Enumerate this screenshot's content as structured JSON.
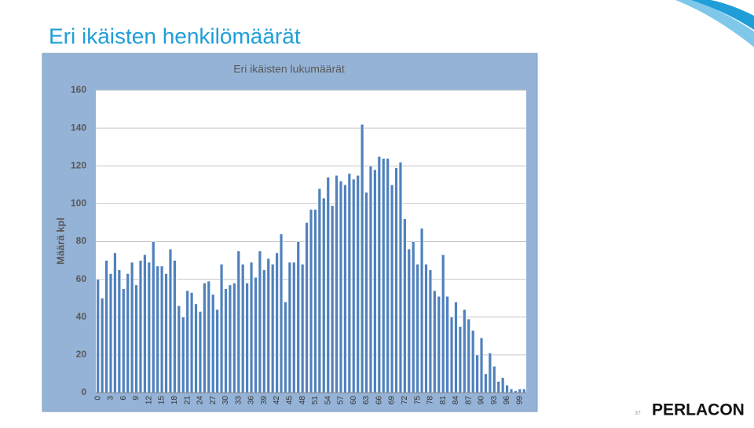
{
  "slide": {
    "title": "Eri ikäisten henkilömäärät",
    "page_number": "37",
    "logo": "PERLACON"
  },
  "chart_data": {
    "type": "bar",
    "title": "Eri ikäisten lukumäärät",
    "y_label": "Määrä kpl",
    "categories": [
      0,
      null,
      null,
      3,
      null,
      null,
      6,
      null,
      null,
      9,
      null,
      null,
      12,
      null,
      null,
      15,
      null,
      null,
      18,
      null,
      null,
      21,
      null,
      null,
      24,
      null,
      null,
      27,
      null,
      null,
      30,
      null,
      null,
      33,
      null,
      null,
      36,
      null,
      null,
      39,
      null,
      null,
      42,
      null,
      null,
      45,
      null,
      null,
      48,
      null,
      null,
      51,
      null,
      null,
      54,
      null,
      null,
      57,
      null,
      null,
      60,
      null,
      null,
      63,
      null,
      null,
      66,
      null,
      null,
      69,
      null,
      null,
      72,
      null,
      null,
      75,
      null,
      null,
      78,
      null,
      null,
      81,
      null,
      null,
      84,
      null,
      null,
      87,
      null,
      null,
      90,
      null,
      null,
      93,
      null,
      null,
      96,
      null,
      null,
      99,
      null
    ],
    "values": [
      60,
      50,
      70,
      63,
      74,
      65,
      55,
      63,
      69,
      57,
      70,
      73,
      69,
      80,
      67,
      67,
      63,
      76,
      70,
      46,
      40,
      54,
      53,
      47,
      43,
      58,
      59,
      52,
      44,
      68,
      55,
      57,
      58,
      75,
      68,
      58,
      69,
      61,
      75,
      65,
      71,
      68,
      74,
      84,
      48,
      69,
      69,
      80,
      68,
      90,
      97,
      97,
      108,
      103,
      114,
      99,
      115,
      112,
      110,
      116,
      113,
      115,
      142,
      106,
      120,
      118,
      125,
      124,
      124,
      110,
      119,
      122,
      92,
      76,
      80,
      68,
      87,
      68,
      65,
      54,
      51,
      73,
      51,
      40,
      48,
      35,
      44,
      39,
      33,
      20,
      29,
      10,
      21,
      14,
      6,
      8,
      4,
      2,
      1,
      2,
      2
    ],
    "color": "#4f81bd",
    "ylim": [
      0,
      160
    ],
    "yticks": [
      0,
      20,
      40,
      60,
      80,
      100,
      120,
      140,
      160
    ],
    "grid": true
  }
}
